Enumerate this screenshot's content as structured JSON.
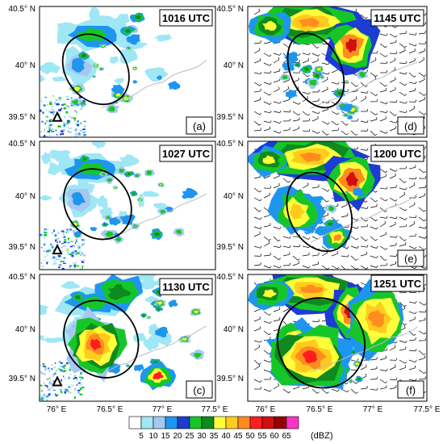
{
  "panels": [
    {
      "time": "1016 UTC",
      "letter": "(a)",
      "wind": false,
      "radar": true,
      "stage": 0
    },
    {
      "time": "1145 UTC",
      "letter": "(d)",
      "wind": true,
      "radar": false,
      "stage": 3
    },
    {
      "time": "1027 UTC",
      "letter": "(b)",
      "wind": false,
      "radar": true,
      "stage": 1
    },
    {
      "time": "1200 UTC",
      "letter": "(e)",
      "wind": true,
      "radar": false,
      "stage": 4
    },
    {
      "time": "1130 UTC",
      "letter": "(c)",
      "wind": false,
      "radar": true,
      "stage": 2
    },
    {
      "time": "1251 UTC",
      "letter": "(f)",
      "wind": true,
      "radar": false,
      "stage": 5
    }
  ],
  "lat_ticks": [
    "40.5° N",
    "40° N",
    "39.5° N"
  ],
  "lon_ticks": [
    "76° E",
    "76.5° E",
    "77° E",
    "77.5° E"
  ],
  "colorbar": {
    "values": [
      "5",
      "10",
      "15",
      "20",
      "25",
      "30",
      "35",
      "40",
      "45",
      "50",
      "55",
      "60",
      "65"
    ],
    "unit": "(dBZ)",
    "colors": [
      "#ffffff",
      "#9fe7f5",
      "#a6c8f0",
      "#1e96f0",
      "#1c3cd2",
      "#16c628",
      "#0f8a1e",
      "#ffff3c",
      "#ffcc1e",
      "#ff8c1e",
      "#ff1e1e",
      "#d20f0f",
      "#960000",
      "#ff32c8"
    ]
  }
}
